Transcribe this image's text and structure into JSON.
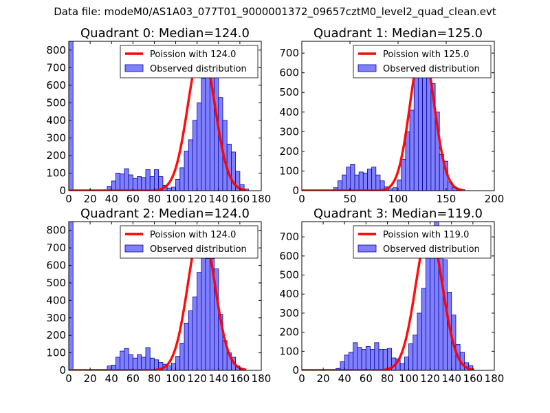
{
  "suptitle": "Data file: modeM0/AS1A03_077T01_9000001372_09657cztM0_level2_quad_clean.evt",
  "colors": {
    "bar_fill": "#8080ff",
    "bar_edge": "#000099",
    "poisson_line": "#ff0000",
    "axis": "#000000"
  },
  "chart_data": [
    {
      "type": "bar",
      "title": "Quadrant 0: Median=124.0",
      "xlim": [
        0,
        180
      ],
      "ylim": [
        0,
        850
      ],
      "xticks": [
        0,
        20,
        40,
        60,
        80,
        100,
        120,
        140,
        160,
        180
      ],
      "yticks": [
        0,
        100,
        200,
        300,
        400,
        500,
        600,
        700,
        800
      ],
      "bin_width": 4,
      "bins": [
        [
          0,
          850
        ],
        [
          36,
          25
        ],
        [
          40,
          55
        ],
        [
          44,
          100
        ],
        [
          48,
          95
        ],
        [
          52,
          125
        ],
        [
          56,
          90
        ],
        [
          60,
          70
        ],
        [
          64,
          80
        ],
        [
          68,
          75
        ],
        [
          72,
          120
        ],
        [
          76,
          80
        ],
        [
          80,
          120
        ],
        [
          84,
          80
        ],
        [
          88,
          30
        ],
        [
          92,
          15
        ],
        [
          96,
          20
        ],
        [
          100,
          65
        ],
        [
          104,
          130
        ],
        [
          108,
          225
        ],
        [
          112,
          290
        ],
        [
          116,
          400
        ],
        [
          120,
          500
        ],
        [
          124,
          640
        ],
        [
          128,
          800
        ],
        [
          132,
          700
        ],
        [
          136,
          660
        ],
        [
          140,
          530
        ],
        [
          144,
          400
        ],
        [
          148,
          265
        ],
        [
          152,
          220
        ],
        [
          156,
          110
        ],
        [
          160,
          35
        ],
        [
          164,
          10
        ]
      ],
      "fit_label": "Poission with 124.0",
      "mu": 124.0,
      "peak": 810,
      "obs_label": "Observed distribution",
      "legend": "top-right"
    },
    {
      "type": "bar",
      "title": "Quadrant 1: Median=125.0",
      "xlim": [
        0,
        200
      ],
      "ylim": [
        0,
        760
      ],
      "xticks": [
        0,
        50,
        100,
        150,
        200
      ],
      "yticks": [
        0,
        100,
        200,
        300,
        400,
        500,
        600,
        700
      ],
      "bin_width": 4.4,
      "bins": [
        [
          33,
          15
        ],
        [
          37.4,
          50
        ],
        [
          41.8,
          80
        ],
        [
          46.2,
          120
        ],
        [
          50.6,
          135
        ],
        [
          55,
          80
        ],
        [
          59.4,
          95
        ],
        [
          63.8,
          90
        ],
        [
          68.2,
          110
        ],
        [
          72.6,
          120
        ],
        [
          77,
          80
        ],
        [
          81.4,
          50
        ],
        [
          85.8,
          20
        ],
        [
          90.2,
          10
        ],
        [
          94.6,
          15
        ],
        [
          99,
          55
        ],
        [
          103.4,
          160
        ],
        [
          107.8,
          300
        ],
        [
          112.2,
          410
        ],
        [
          116.6,
          580
        ],
        [
          121,
          715
        ],
        [
          125.4,
          600
        ],
        [
          129.8,
          720
        ],
        [
          134.2,
          545
        ],
        [
          138.6,
          400
        ],
        [
          143,
          185
        ],
        [
          147.4,
          150
        ],
        [
          151.8,
          45
        ],
        [
          156.2,
          15
        ],
        [
          160.6,
          10
        ],
        [
          165,
          5
        ]
      ],
      "fit_label": "Poission with 125.0",
      "mu": 125.0,
      "peak": 730,
      "obs_label": "Observed distribution",
      "legend": "top-right"
    },
    {
      "type": "bar",
      "title": "Quadrant 2: Median=124.0",
      "xlim": [
        0,
        180
      ],
      "ylim": [
        0,
        850
      ],
      "xticks": [
        0,
        20,
        40,
        60,
        80,
        100,
        120,
        140,
        160,
        180
      ],
      "yticks": [
        0,
        100,
        200,
        300,
        400,
        500,
        600,
        700,
        800
      ],
      "bin_width": 4,
      "bins": [
        [
          0,
          850
        ],
        [
          36,
          25
        ],
        [
          40,
          30
        ],
        [
          44,
          75
        ],
        [
          48,
          110
        ],
        [
          52,
          125
        ],
        [
          56,
          90
        ],
        [
          60,
          70
        ],
        [
          64,
          90
        ],
        [
          68,
          75
        ],
        [
          72,
          130
        ],
        [
          76,
          70
        ],
        [
          80,
          60
        ],
        [
          84,
          45
        ],
        [
          88,
          35
        ],
        [
          92,
          25
        ],
        [
          96,
          40
        ],
        [
          100,
          80
        ],
        [
          104,
          155
        ],
        [
          108,
          270
        ],
        [
          112,
          340
        ],
        [
          116,
          420
        ],
        [
          120,
          560
        ],
        [
          124,
          770
        ],
        [
          128,
          640
        ],
        [
          132,
          640
        ],
        [
          136,
          580
        ],
        [
          140,
          320
        ],
        [
          144,
          170
        ],
        [
          148,
          100
        ],
        [
          152,
          75
        ],
        [
          156,
          25
        ],
        [
          160,
          10
        ]
      ],
      "fit_label": "Poission with 124.0",
      "mu": 124.0,
      "peak": 820,
      "obs_label": "Observed distribution",
      "legend": "top-right"
    },
    {
      "type": "bar",
      "title": "Quadrant 3: Median=119.0",
      "xlim": [
        0,
        180
      ],
      "ylim": [
        0,
        780
      ],
      "xticks": [
        0,
        20,
        40,
        60,
        80,
        100,
        120,
        140,
        160,
        180
      ],
      "yticks": [
        0,
        100,
        200,
        300,
        400,
        500,
        600,
        700
      ],
      "bin_width": 4,
      "bins": [
        [
          32,
          10
        ],
        [
          36,
          45
        ],
        [
          40,
          80
        ],
        [
          44,
          95
        ],
        [
          48,
          145
        ],
        [
          52,
          120
        ],
        [
          56,
          110
        ],
        [
          60,
          125
        ],
        [
          64,
          110
        ],
        [
          68,
          145
        ],
        [
          72,
          110
        ],
        [
          76,
          110
        ],
        [
          80,
          115
        ],
        [
          84,
          65
        ],
        [
          88,
          60
        ],
        [
          92,
          35
        ],
        [
          96,
          70
        ],
        [
          100,
          140
        ],
        [
          104,
          185
        ],
        [
          108,
          300
        ],
        [
          112,
          430
        ],
        [
          116,
          620
        ],
        [
          120,
          650
        ],
        [
          124,
          780
        ],
        [
          128,
          680
        ],
        [
          132,
          580
        ],
        [
          136,
          410
        ],
        [
          140,
          290
        ],
        [
          144,
          135
        ],
        [
          148,
          95
        ],
        [
          152,
          40
        ],
        [
          156,
          25
        ]
      ],
      "fit_label": "Poission with 119.0",
      "mu": 119.0,
      "peak": 735,
      "obs_label": "Observed distribution",
      "legend": "top-right"
    }
  ]
}
